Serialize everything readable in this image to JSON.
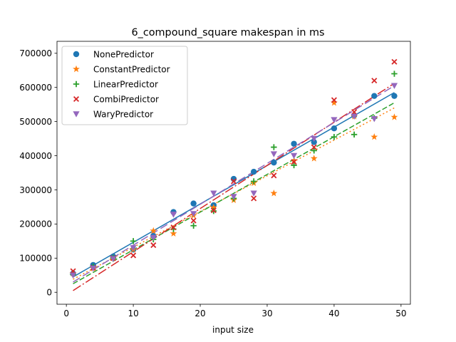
{
  "chart_data": {
    "type": "scatter",
    "title": "6_compound_square makespan in ms",
    "xlabel": "input size",
    "ylabel": "",
    "xlim": [
      -1.4,
      51.4
    ],
    "ylim": [
      -35000,
      735000
    ],
    "xticks": [
      0,
      10,
      20,
      30,
      40,
      50
    ],
    "yticks": [
      0,
      100000,
      200000,
      300000,
      400000,
      500000,
      600000,
      700000
    ],
    "grid": false,
    "legend_position": "top-left",
    "series": [
      {
        "name": "NonePredictor",
        "color": "#1f77b4",
        "marker": "circle",
        "line_style": "solid",
        "x": [
          1,
          4,
          7,
          10,
          13,
          16,
          19,
          22,
          25,
          28,
          31,
          34,
          37,
          40,
          43,
          46,
          49
        ],
        "y": [
          55000,
          80000,
          105000,
          125000,
          165000,
          235000,
          260000,
          255000,
          332000,
          353000,
          380000,
          435000,
          440000,
          480000,
          518000,
          575000,
          575000
        ],
        "fit": [
          [
            1,
            45000
          ],
          [
            49,
            585000
          ]
        ]
      },
      {
        "name": "ConstantPredictor",
        "color": "#ff7f0e",
        "marker": "star",
        "line_style": "dotted",
        "x": [
          1,
          4,
          7,
          10,
          13,
          16,
          19,
          22,
          25,
          28,
          31,
          34,
          37,
          40,
          43,
          46,
          49
        ],
        "y": [
          55000,
          70000,
          100000,
          125000,
          180000,
          172000,
          225000,
          248000,
          270000,
          320000,
          290000,
          385000,
          392000,
          555000,
          515000,
          455000,
          513000
        ],
        "fit": [
          [
            1,
            38000
          ],
          [
            49,
            540000
          ]
        ]
      },
      {
        "name": "LinearPredictor",
        "color": "#2ca02c",
        "marker": "plus",
        "line_style": "dashed",
        "x": [
          1,
          4,
          7,
          10,
          13,
          16,
          19,
          22,
          25,
          28,
          31,
          34,
          37,
          40,
          43,
          46,
          49
        ],
        "y": [
          52000,
          75000,
          100000,
          150000,
          155000,
          185000,
          195000,
          238000,
          275000,
          325000,
          425000,
          372000,
          415000,
          455000,
          462000,
          510000,
          640000
        ],
        "fit": [
          [
            1,
            25000
          ],
          [
            49,
            555000
          ]
        ]
      },
      {
        "name": "CombiPredictor",
        "color": "#d62728",
        "marker": "x",
        "line_style": "dashdot",
        "x": [
          1,
          4,
          7,
          10,
          13,
          16,
          19,
          22,
          25,
          28,
          31,
          34,
          37,
          40,
          43,
          46,
          49
        ],
        "y": [
          62000,
          72000,
          100000,
          108000,
          138000,
          190000,
          210000,
          240000,
          325000,
          275000,
          342000,
          382000,
          425000,
          563000,
          528000,
          620000,
          675000
        ],
        "fit": [
          [
            1,
            5000
          ],
          [
            49,
            612000
          ]
        ]
      },
      {
        "name": "WaryPredictor",
        "color": "#9467bd",
        "marker": "triangle-down",
        "line_style": "longdash",
        "x": [
          1,
          4,
          7,
          10,
          13,
          16,
          19,
          22,
          25,
          28,
          31,
          34,
          37,
          40,
          43,
          46,
          49
        ],
        "y": [
          50000,
          70000,
          98000,
          130000,
          160000,
          228000,
          230000,
          290000,
          280000,
          290000,
          405000,
          400000,
          450000,
          505000,
          515000,
          508000,
          605000
        ],
        "fit": [
          [
            1,
            30000
          ],
          [
            49,
            605000
          ]
        ]
      }
    ]
  }
}
